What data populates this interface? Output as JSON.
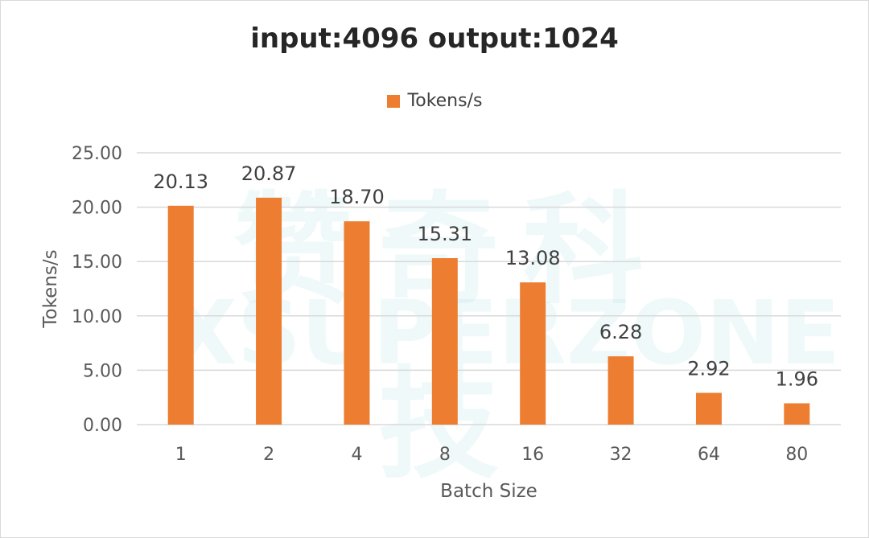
{
  "chart_data": {
    "type": "bar",
    "title": "input:4096 output:1024",
    "xlabel": "Batch Size",
    "ylabel": "Tokens/s",
    "categories": [
      "1",
      "2",
      "4",
      "8",
      "16",
      "32",
      "64",
      "80"
    ],
    "series": [
      {
        "name": "Tokens/s",
        "values": [
          20.13,
          20.87,
          18.7,
          15.31,
          13.08,
          6.28,
          2.92,
          1.96
        ],
        "data_labels": [
          "20.13",
          "20.87",
          "18.70",
          "15.31",
          "13.08",
          "6.28",
          "2.92",
          "1.96"
        ],
        "color": "#ED7D31"
      }
    ],
    "ylim": [
      0,
      25
    ],
    "yticks": [
      0,
      5,
      10,
      15,
      20,
      25
    ],
    "ytick_labels": [
      "0.00",
      "5.00",
      "10.00",
      "15.00",
      "20.00",
      "25.00"
    ],
    "grid": true,
    "legend_position": "top"
  },
  "watermark": {
    "cn": "赞奇科技",
    "en": "XSUPERZONE"
  },
  "colors": {
    "bar": "#ED7D31",
    "grid": "#d9d9d9",
    "text": "#595959"
  }
}
